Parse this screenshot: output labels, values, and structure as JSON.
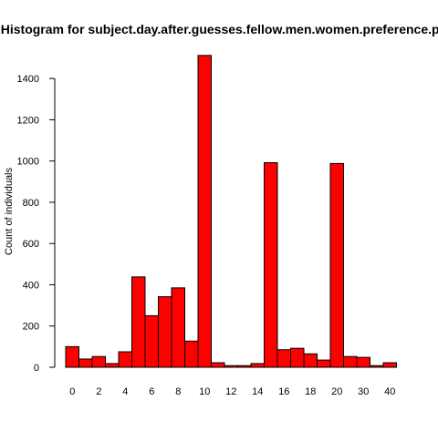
{
  "chart_data": {
    "type": "bar",
    "title": "Histogram for subject.day.after.guesses.fellow.men.women.preference.partner",
    "xlabel": "",
    "ylabel": "Count of individuals",
    "categories": [
      "0",
      "1",
      "2",
      "3",
      "4",
      "5",
      "6",
      "7",
      "8",
      "9",
      "10",
      "11",
      "12",
      "13",
      "14",
      "15",
      "16",
      "17",
      "18",
      "19",
      "20",
      "25",
      "30",
      "35",
      "40"
    ],
    "x_tick_labels": [
      "0",
      "2",
      "4",
      "6",
      "8",
      "10",
      "12",
      "14",
      "16",
      "18",
      "20",
      "30",
      "40"
    ],
    "values": [
      100,
      40,
      52,
      18,
      75,
      438,
      250,
      342,
      385,
      127,
      1512,
      22,
      8,
      8,
      18,
      992,
      85,
      92,
      65,
      35,
      988,
      52,
      48,
      8,
      22
    ],
    "yticks": [
      0,
      200,
      400,
      600,
      800,
      1000,
      1200,
      1400
    ],
    "ylim": [
      0,
      1520
    ],
    "bar_color": "#ff0000",
    "border_color": "#000000"
  }
}
